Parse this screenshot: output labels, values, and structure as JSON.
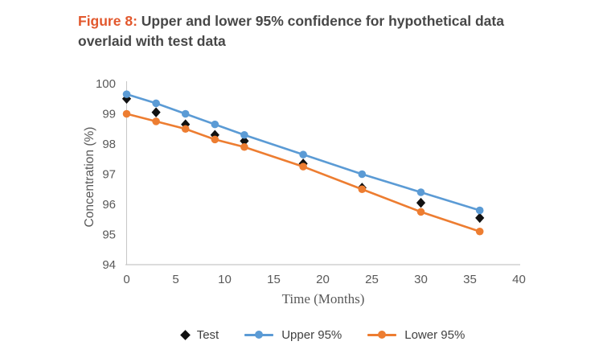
{
  "figure": {
    "label": "Figure 8:",
    "title_line1": "Upper and lower 95% confidence for hypothetical data",
    "title_line2": "overlaid with test data",
    "label_color": "#E2582D",
    "text_color": "#474747"
  },
  "chart_data": {
    "type": "line",
    "title": "Figure 8: Upper and lower 95% confidence for hypothetical data overlaid with test data",
    "xlabel": "Time (Months)",
    "ylabel": "Concentration (%)",
    "x": [
      0,
      3,
      6,
      9,
      12,
      18,
      24,
      30,
      36
    ],
    "series": [
      {
        "key": "test",
        "name": "Test",
        "color": "#111111",
        "marker": "diamond",
        "line": false,
        "values": [
          99.5,
          99.05,
          98.65,
          98.3,
          98.1,
          97.35,
          96.55,
          96.05,
          95.55
        ]
      },
      {
        "key": "upper",
        "name": "Upper 95%",
        "color": "#5B9BD5",
        "marker": "circle",
        "line": true,
        "values": [
          99.65,
          99.35,
          99.0,
          98.65,
          98.3,
          97.65,
          97.0,
          96.4,
          95.8
        ]
      },
      {
        "key": "lower",
        "name": "Lower 95%",
        "color": "#ED7D31",
        "marker": "circle",
        "line": true,
        "values": [
          99.0,
          98.75,
          98.5,
          98.15,
          97.9,
          97.25,
          96.5,
          95.75,
          95.1
        ]
      }
    ],
    "x_ticks": [
      0,
      5,
      10,
      15,
      20,
      25,
      30,
      35,
      40
    ],
    "y_ticks": [
      94,
      95,
      96,
      97,
      98,
      99,
      100
    ],
    "xlim": [
      0,
      40
    ],
    "ylim": [
      94,
      100
    ],
    "grid": false,
    "legend_position": "bottom",
    "axis_color": "#C6C6C6",
    "tick_color": "#595959"
  }
}
